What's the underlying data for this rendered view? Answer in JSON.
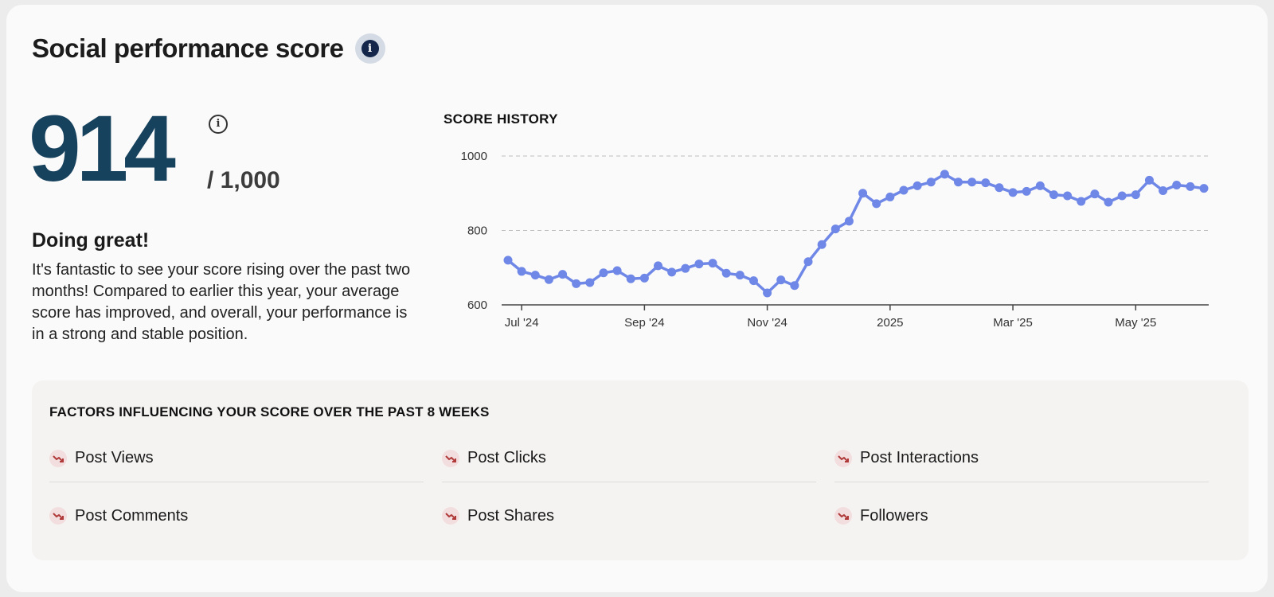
{
  "header": {
    "title": "Social performance score",
    "info_icon": "info-icon"
  },
  "score": {
    "value": "914",
    "max_label": "/ 1,000",
    "info_icon": "info-outline-icon"
  },
  "status": {
    "heading": "Doing great!",
    "text": "It's fantastic to see your score rising over the past two months! Compared to earlier this year, your average score has improved, and overall, your performance is in a strong and stable position."
  },
  "chart_data": {
    "type": "line",
    "title": "SCORE HISTORY",
    "xlabel": "",
    "ylabel": "",
    "ylim": [
      600,
      1000
    ],
    "yticks": [
      600,
      800,
      1000
    ],
    "x_tick_labels": [
      "Jul '24",
      "Sep '24",
      "Nov '24",
      "2025",
      "Mar '25",
      "May '25"
    ],
    "x_tick_index": [
      1,
      10,
      19,
      28,
      37,
      46
    ],
    "grid": "horizontal dashed",
    "color": "#6f87e6",
    "series": [
      {
        "values": [
          720,
          690,
          680,
          668,
          682,
          657,
          660,
          686,
          692,
          670,
          672,
          705,
          688,
          698,
          710,
          712,
          685,
          680,
          665,
          632,
          667,
          652,
          716,
          762,
          804,
          825,
          900,
          872,
          890,
          908,
          920,
          930,
          951,
          930,
          930,
          928,
          915,
          902,
          905,
          920,
          896,
          893,
          878,
          898,
          876,
          893,
          896,
          935,
          907,
          922,
          918,
          913
        ]
      }
    ]
  },
  "factors": {
    "title": "FACTORS INFLUENCING YOUR SCORE OVER THE PAST 8 WEEKS",
    "trend_icon": "trending-down-icon",
    "trend_color": "#b03a3a",
    "items": [
      {
        "label": "Post Views"
      },
      {
        "label": "Post Clicks"
      },
      {
        "label": "Post Interactions"
      },
      {
        "label": "Post Comments"
      },
      {
        "label": "Post Shares"
      },
      {
        "label": "Followers"
      }
    ]
  }
}
